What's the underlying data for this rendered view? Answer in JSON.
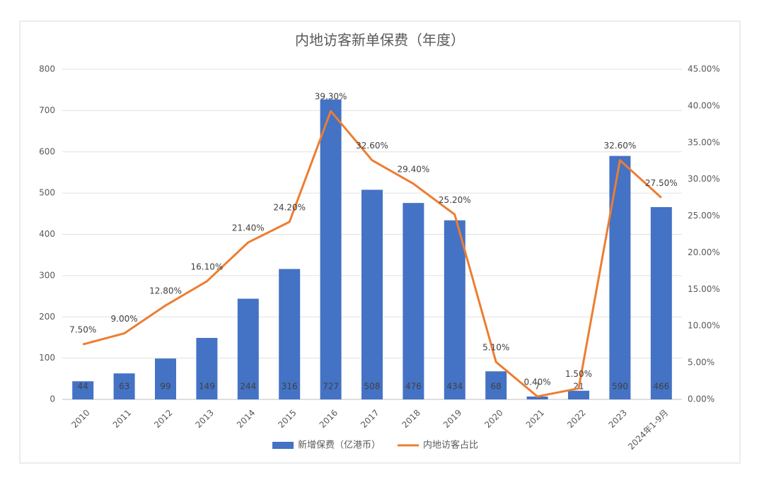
{
  "chart_data": {
    "type": "combo",
    "title": "内地访客新单保费（年度）",
    "categories": [
      "2010",
      "2011",
      "2012",
      "2013",
      "2014",
      "2015",
      "2016",
      "2017",
      "2018",
      "2019",
      "2020",
      "2021",
      "2022",
      "2023",
      "2024年1-9月"
    ],
    "series": [
      {
        "name": "新增保费（亿港币）",
        "type": "bar",
        "color": "#4472c4",
        "axis": "y",
        "values": [
          44,
          63,
          99,
          149,
          244,
          316,
          727,
          508,
          476,
          434,
          68,
          7,
          21,
          590,
          466
        ]
      },
      {
        "name": "内地访客占比",
        "type": "line",
        "color": "#ed7d31",
        "axis": "y2",
        "values": [
          7.5,
          9,
          12.8,
          16.1,
          21.4,
          24.2,
          39.3,
          32.6,
          29.4,
          25.2,
          5.1,
          0.4,
          1.5,
          32.6,
          27.5
        ],
        "value_labels": [
          "7.50%",
          "9.00%",
          "12.80%",
          "16.10%",
          "21.40%",
          "24.20%",
          "39.30%",
          "32.60%",
          "29.40%",
          "25.20%",
          "5.10%",
          "0.40%",
          "1.50%",
          "32.60%",
          "27.50%"
        ]
      }
    ],
    "ylim": [
      0,
      800
    ],
    "yticks": [
      0,
      100,
      200,
      300,
      400,
      500,
      600,
      700,
      800
    ],
    "y2lim": [
      0,
      45
    ],
    "y2ticks": [
      {
        "value": 0,
        "label": "0.00%"
      },
      {
        "value": 5,
        "label": "5.00%"
      },
      {
        "value": 10,
        "label": "10.00%"
      },
      {
        "value": 15,
        "label": "15.00%"
      },
      {
        "value": 20,
        "label": "20.00%"
      },
      {
        "value": 25,
        "label": "25.00%"
      },
      {
        "value": 30,
        "label": "30.00%"
      },
      {
        "value": 35,
        "label": "35.00%"
      },
      {
        "value": 40,
        "label": "40.00%"
      },
      {
        "value": 45,
        "label": "45.00%"
      }
    ],
    "grid": true,
    "legend": "bottom"
  }
}
